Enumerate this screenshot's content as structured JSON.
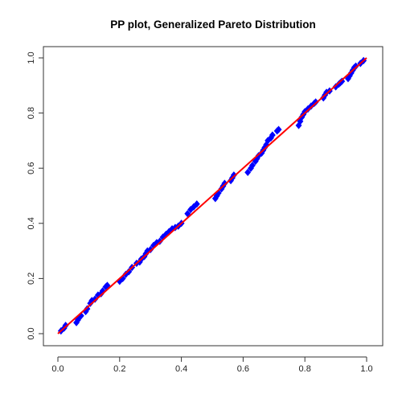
{
  "chart_data": {
    "type": "scatter",
    "title": "PP plot, Generalized Pareto Distribution",
    "xlabel": "",
    "ylabel": "",
    "xlim": [
      0.0,
      1.0
    ],
    "ylim": [
      0.0,
      1.0
    ],
    "x_ticks": [
      "0.0",
      "0.2",
      "0.4",
      "0.6",
      "0.8",
      "1.0"
    ],
    "y_ticks": [
      "0.0",
      "0.2",
      "0.4",
      "0.6",
      "0.8",
      "1.0"
    ],
    "grid": false,
    "legend": "none",
    "colors": {
      "points": "#0000ff",
      "reference_line": "#ff0000"
    },
    "reference_line": {
      "from": [
        0.0,
        0.0
      ],
      "to": [
        1.0,
        1.0
      ]
    },
    "points": [
      [
        0.01,
        0.01
      ],
      [
        0.02,
        0.02
      ],
      [
        0.025,
        0.03
      ],
      [
        0.06,
        0.04
      ],
      [
        0.065,
        0.05
      ],
      [
        0.07,
        0.06
      ],
      [
        0.075,
        0.065
      ],
      [
        0.09,
        0.08
      ],
      [
        0.095,
        0.09
      ],
      [
        0.105,
        0.11
      ],
      [
        0.11,
        0.12
      ],
      [
        0.12,
        0.125
      ],
      [
        0.13,
        0.14
      ],
      [
        0.14,
        0.145
      ],
      [
        0.145,
        0.155
      ],
      [
        0.155,
        0.17
      ],
      [
        0.16,
        0.175
      ],
      [
        0.2,
        0.19
      ],
      [
        0.21,
        0.2
      ],
      [
        0.22,
        0.215
      ],
      [
        0.23,
        0.225
      ],
      [
        0.24,
        0.24
      ],
      [
        0.255,
        0.255
      ],
      [
        0.265,
        0.26
      ],
      [
        0.27,
        0.27
      ],
      [
        0.28,
        0.28
      ],
      [
        0.285,
        0.29
      ],
      [
        0.29,
        0.3
      ],
      [
        0.3,
        0.305
      ],
      [
        0.31,
        0.32
      ],
      [
        0.32,
        0.33
      ],
      [
        0.33,
        0.335
      ],
      [
        0.34,
        0.35
      ],
      [
        0.35,
        0.36
      ],
      [
        0.36,
        0.37
      ],
      [
        0.37,
        0.38
      ],
      [
        0.38,
        0.385
      ],
      [
        0.39,
        0.39
      ],
      [
        0.4,
        0.4
      ],
      [
        0.42,
        0.435
      ],
      [
        0.43,
        0.45
      ],
      [
        0.44,
        0.46
      ],
      [
        0.45,
        0.47
      ],
      [
        0.51,
        0.49
      ],
      [
        0.515,
        0.5
      ],
      [
        0.52,
        0.51
      ],
      [
        0.53,
        0.525
      ],
      [
        0.535,
        0.535
      ],
      [
        0.54,
        0.545
      ],
      [
        0.56,
        0.555
      ],
      [
        0.565,
        0.565
      ],
      [
        0.57,
        0.575
      ],
      [
        0.615,
        0.585
      ],
      [
        0.625,
        0.6
      ],
      [
        0.63,
        0.61
      ],
      [
        0.64,
        0.625
      ],
      [
        0.645,
        0.635
      ],
      [
        0.65,
        0.645
      ],
      [
        0.66,
        0.655
      ],
      [
        0.665,
        0.665
      ],
      [
        0.67,
        0.675
      ],
      [
        0.675,
        0.685
      ],
      [
        0.68,
        0.7
      ],
      [
        0.69,
        0.71
      ],
      [
        0.695,
        0.72
      ],
      [
        0.71,
        0.735
      ],
      [
        0.715,
        0.74
      ],
      [
        0.78,
        0.755
      ],
      [
        0.785,
        0.77
      ],
      [
        0.79,
        0.785
      ],
      [
        0.795,
        0.795
      ],
      [
        0.8,
        0.805
      ],
      [
        0.81,
        0.815
      ],
      [
        0.82,
        0.825
      ],
      [
        0.83,
        0.835
      ],
      [
        0.835,
        0.84
      ],
      [
        0.86,
        0.855
      ],
      [
        0.865,
        0.865
      ],
      [
        0.87,
        0.875
      ],
      [
        0.88,
        0.88
      ],
      [
        0.9,
        0.895
      ],
      [
        0.91,
        0.905
      ],
      [
        0.915,
        0.91
      ],
      [
        0.92,
        0.915
      ],
      [
        0.94,
        0.925
      ],
      [
        0.945,
        0.935
      ],
      [
        0.95,
        0.945
      ],
      [
        0.955,
        0.955
      ],
      [
        0.96,
        0.965
      ],
      [
        0.965,
        0.97
      ],
      [
        0.98,
        0.98
      ],
      [
        0.99,
        0.99
      ]
    ]
  }
}
